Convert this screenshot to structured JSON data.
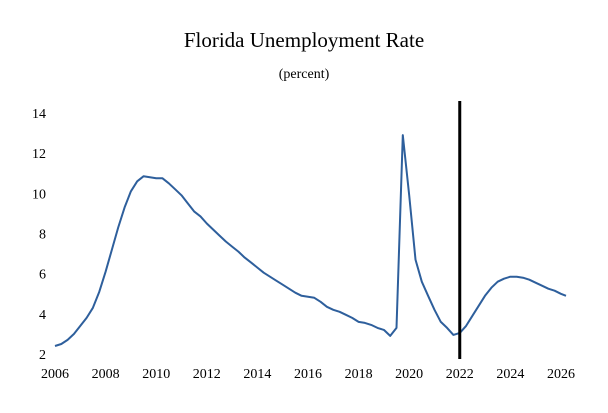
{
  "chart_data": {
    "type": "line",
    "title": "Florida Unemployment Rate",
    "subtitle": "(percent)",
    "xlabel": "",
    "ylabel": "",
    "xlim": [
      2006,
      2026.2
    ],
    "ylim": [
      2,
      14
    ],
    "x_ticks": [
      2006,
      2008,
      2010,
      2012,
      2014,
      2016,
      2018,
      2020,
      2022,
      2024,
      2026
    ],
    "y_ticks": [
      2,
      4,
      6,
      8,
      10,
      12,
      14
    ],
    "grid": false,
    "legend": "none",
    "line_color": "#2e5f9c",
    "marker_line_color": "#000000",
    "vertical_marker_x": 2022.0,
    "series": [
      {
        "x": [
          2006.0,
          2006.25,
          2006.5,
          2006.75,
          2007.0,
          2007.25,
          2007.5,
          2007.75,
          2008.0,
          2008.25,
          2008.5,
          2008.75,
          2009.0,
          2009.25,
          2009.5,
          2009.75,
          2010.0,
          2010.25,
          2010.5,
          2010.75,
          2011.0,
          2011.25,
          2011.5,
          2011.75,
          2012.0,
          2012.25,
          2012.5,
          2012.75,
          2013.0,
          2013.25,
          2013.5,
          2013.75,
          2014.0,
          2014.25,
          2014.5,
          2014.75,
          2015.0,
          2015.25,
          2015.5,
          2015.75,
          2016.0,
          2016.25,
          2016.5,
          2016.75,
          2017.0,
          2017.25,
          2017.5,
          2017.75,
          2018.0,
          2018.25,
          2018.5,
          2018.75,
          2019.0,
          2019.25,
          2019.5,
          2019.75,
          2020.0,
          2020.25,
          2020.5,
          2020.75,
          2021.0,
          2021.25,
          2021.5,
          2021.75,
          2022.0,
          2022.25,
          2022.5,
          2022.75,
          2023.0,
          2023.25,
          2023.5,
          2023.75,
          2024.0,
          2024.25,
          2024.5,
          2024.75,
          2025.0,
          2025.25,
          2025.5,
          2025.75,
          2026.0,
          2026.2
        ],
        "values": [
          2.4,
          2.5,
          2.7,
          3.0,
          3.4,
          3.8,
          4.3,
          5.1,
          6.1,
          7.2,
          8.3,
          9.3,
          10.1,
          10.6,
          10.85,
          10.8,
          10.75,
          10.75,
          10.5,
          10.2,
          9.9,
          9.5,
          9.1,
          8.85,
          8.5,
          8.2,
          7.9,
          7.6,
          7.35,
          7.1,
          6.8,
          6.55,
          6.3,
          6.05,
          5.85,
          5.65,
          5.45,
          5.25,
          5.05,
          4.9,
          4.85,
          4.8,
          4.6,
          4.35,
          4.2,
          4.1,
          3.95,
          3.8,
          3.6,
          3.55,
          3.45,
          3.3,
          3.2,
          2.9,
          3.3,
          12.9,
          9.9,
          6.7,
          5.6,
          4.9,
          4.2,
          3.6,
          3.3,
          2.95,
          3.05,
          3.4,
          3.9,
          4.4,
          4.9,
          5.3,
          5.6,
          5.75,
          5.85,
          5.85,
          5.8,
          5.7,
          5.55,
          5.4,
          5.25,
          5.15,
          5.0,
          4.9
        ]
      }
    ]
  }
}
